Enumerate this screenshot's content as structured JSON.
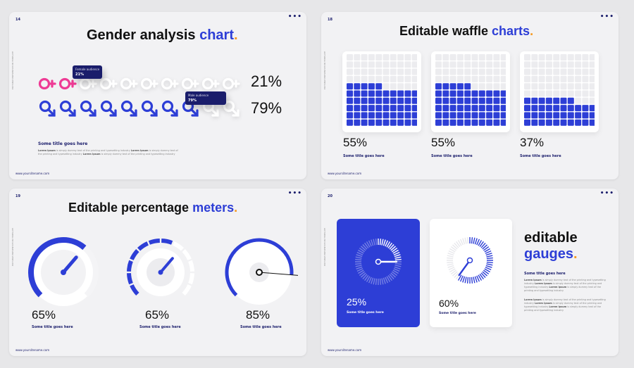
{
  "colors": {
    "blue": "#2d3ed6",
    "navy": "#1a1d6b",
    "pink": "#ee3b95",
    "orange": "#f59a23",
    "light": "#f2f2f4"
  },
  "common": {
    "footer_url": "www.yoursitename.com",
    "side_text": "EDITABLE PRESENTATION TEMPLATE",
    "dots": "•••"
  },
  "slide14": {
    "number": "14",
    "title_plain": "Gender analysis ",
    "title_accent": "chart",
    "title_dot": ".",
    "female_tip_label": "Female audience",
    "female_tip_value": "21%",
    "male_tip_label": "Male audience",
    "male_tip_value": "79%",
    "female_pct": "21%",
    "male_pct": "79%",
    "female_icons_filled": 2,
    "male_icons_filled": 8,
    "icons_total": 10,
    "subtitle": "Some title goes here",
    "body_lead": "Lorem Ipsum",
    "body_text": " is simply dummy text of the printing and typesetting industry ",
    "body_lead2": "Lorem Ipsum",
    "body_text2": " is simply dummy text of the printing and typesetting industry ",
    "body_lead3": "Lorem Ipsum",
    "body_text3": " is simply dummy text of the printing and typesetting industry"
  },
  "slide18": {
    "number": "18",
    "title_plain": "Editable waffle ",
    "title_accent": "charts",
    "title_dot": ".",
    "waffles": [
      {
        "pct": "55%",
        "value": 55,
        "subtitle": "Some title goes here"
      },
      {
        "pct": "55%",
        "value": 55,
        "subtitle": "Some title goes here"
      },
      {
        "pct": "37%",
        "value": 37,
        "subtitle": "Some title goes here"
      }
    ]
  },
  "slide19": {
    "number": "19",
    "title_plain": "Editable percentage ",
    "title_accent": "meters",
    "title_dot": ".",
    "meters": [
      {
        "pct": "65%",
        "value": 65,
        "subtitle": "Some title goes here"
      },
      {
        "pct": "65%",
        "value": 65,
        "subtitle": "Some title goes here"
      },
      {
        "pct": "85%",
        "value": 85,
        "subtitle": "Some title goes here"
      }
    ]
  },
  "slide20": {
    "number": "20",
    "title_line1": "editable",
    "title_line2": "gauges",
    "title_dot": ".",
    "gauge1_pct": "25%",
    "gauge1_value": 25,
    "gauge1_subtitle": "Some title goes here",
    "gauge2_pct": "60%",
    "gauge2_value": 60,
    "gauge2_subtitle": "Some title goes here",
    "subtitle": "Some title goes here",
    "para1_lead": "Lorem Ipsum",
    "para1_text": " is simply dummy text of the printing and typesetting industry ",
    "para1_lead2": "Lorem Ipsum",
    "para1_text2": " is simply dummy text of the printing and typesetting industry ",
    "para1_lead3": "Lorem Ipsum",
    "para1_text3": " is simply dummy text of the printing and typesetting industry",
    "para2_lead": "Lorem Ipsum",
    "para2_text": " is simply dummy text of the printing and typesetting industry ",
    "para2_lead2": "Lorem Ipsum",
    "para2_text2": " is simply dummy text of the printing and typesetting industry ",
    "para2_lead3": "Lorem Ipsum",
    "para2_text3": " is simply dummy text of the printing and typesetting industry"
  }
}
